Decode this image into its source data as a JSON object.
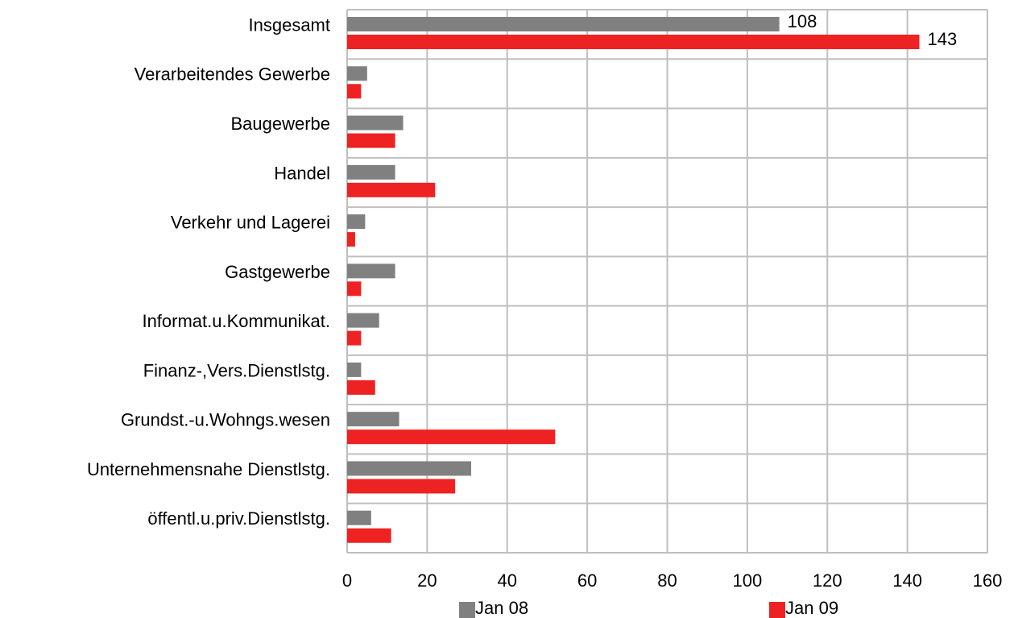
{
  "chart_data": {
    "type": "hbar",
    "categories": [
      "Insgesamt",
      "Verarbeitendes Gewerbe",
      "Baugewerbe",
      "Handel",
      "Verkehr und Lagerei",
      "Gastgewerbe",
      "Informat.u.Kommunikat.",
      "Finanz-,Vers.Dienstlstg.",
      "Grundst.-u.Wohngs.wesen",
      "Unternehmensnahe Dienstlstg.",
      "öffentl.u.priv.Dienstlstg."
    ],
    "series": [
      {
        "name": "Jan 08",
        "color": "#808080",
        "values": [
          108,
          5,
          14,
          12,
          4.5,
          12,
          8,
          3.5,
          13,
          31,
          6
        ],
        "value_labels": [
          "108",
          null,
          null,
          null,
          null,
          null,
          null,
          null,
          null,
          null,
          null
        ]
      },
      {
        "name": "Jan 09",
        "color": "#ee2222",
        "values": [
          143,
          3.5,
          12,
          22,
          2,
          3.5,
          3.5,
          7,
          52,
          27,
          11
        ],
        "value_labels": [
          "143",
          null,
          null,
          null,
          null,
          null,
          null,
          null,
          null,
          null,
          null
        ]
      }
    ],
    "xlim": [
      0,
      160
    ],
    "xticks": [
      0,
      20,
      40,
      60,
      80,
      100,
      120,
      140,
      160
    ],
    "grid": true
  }
}
